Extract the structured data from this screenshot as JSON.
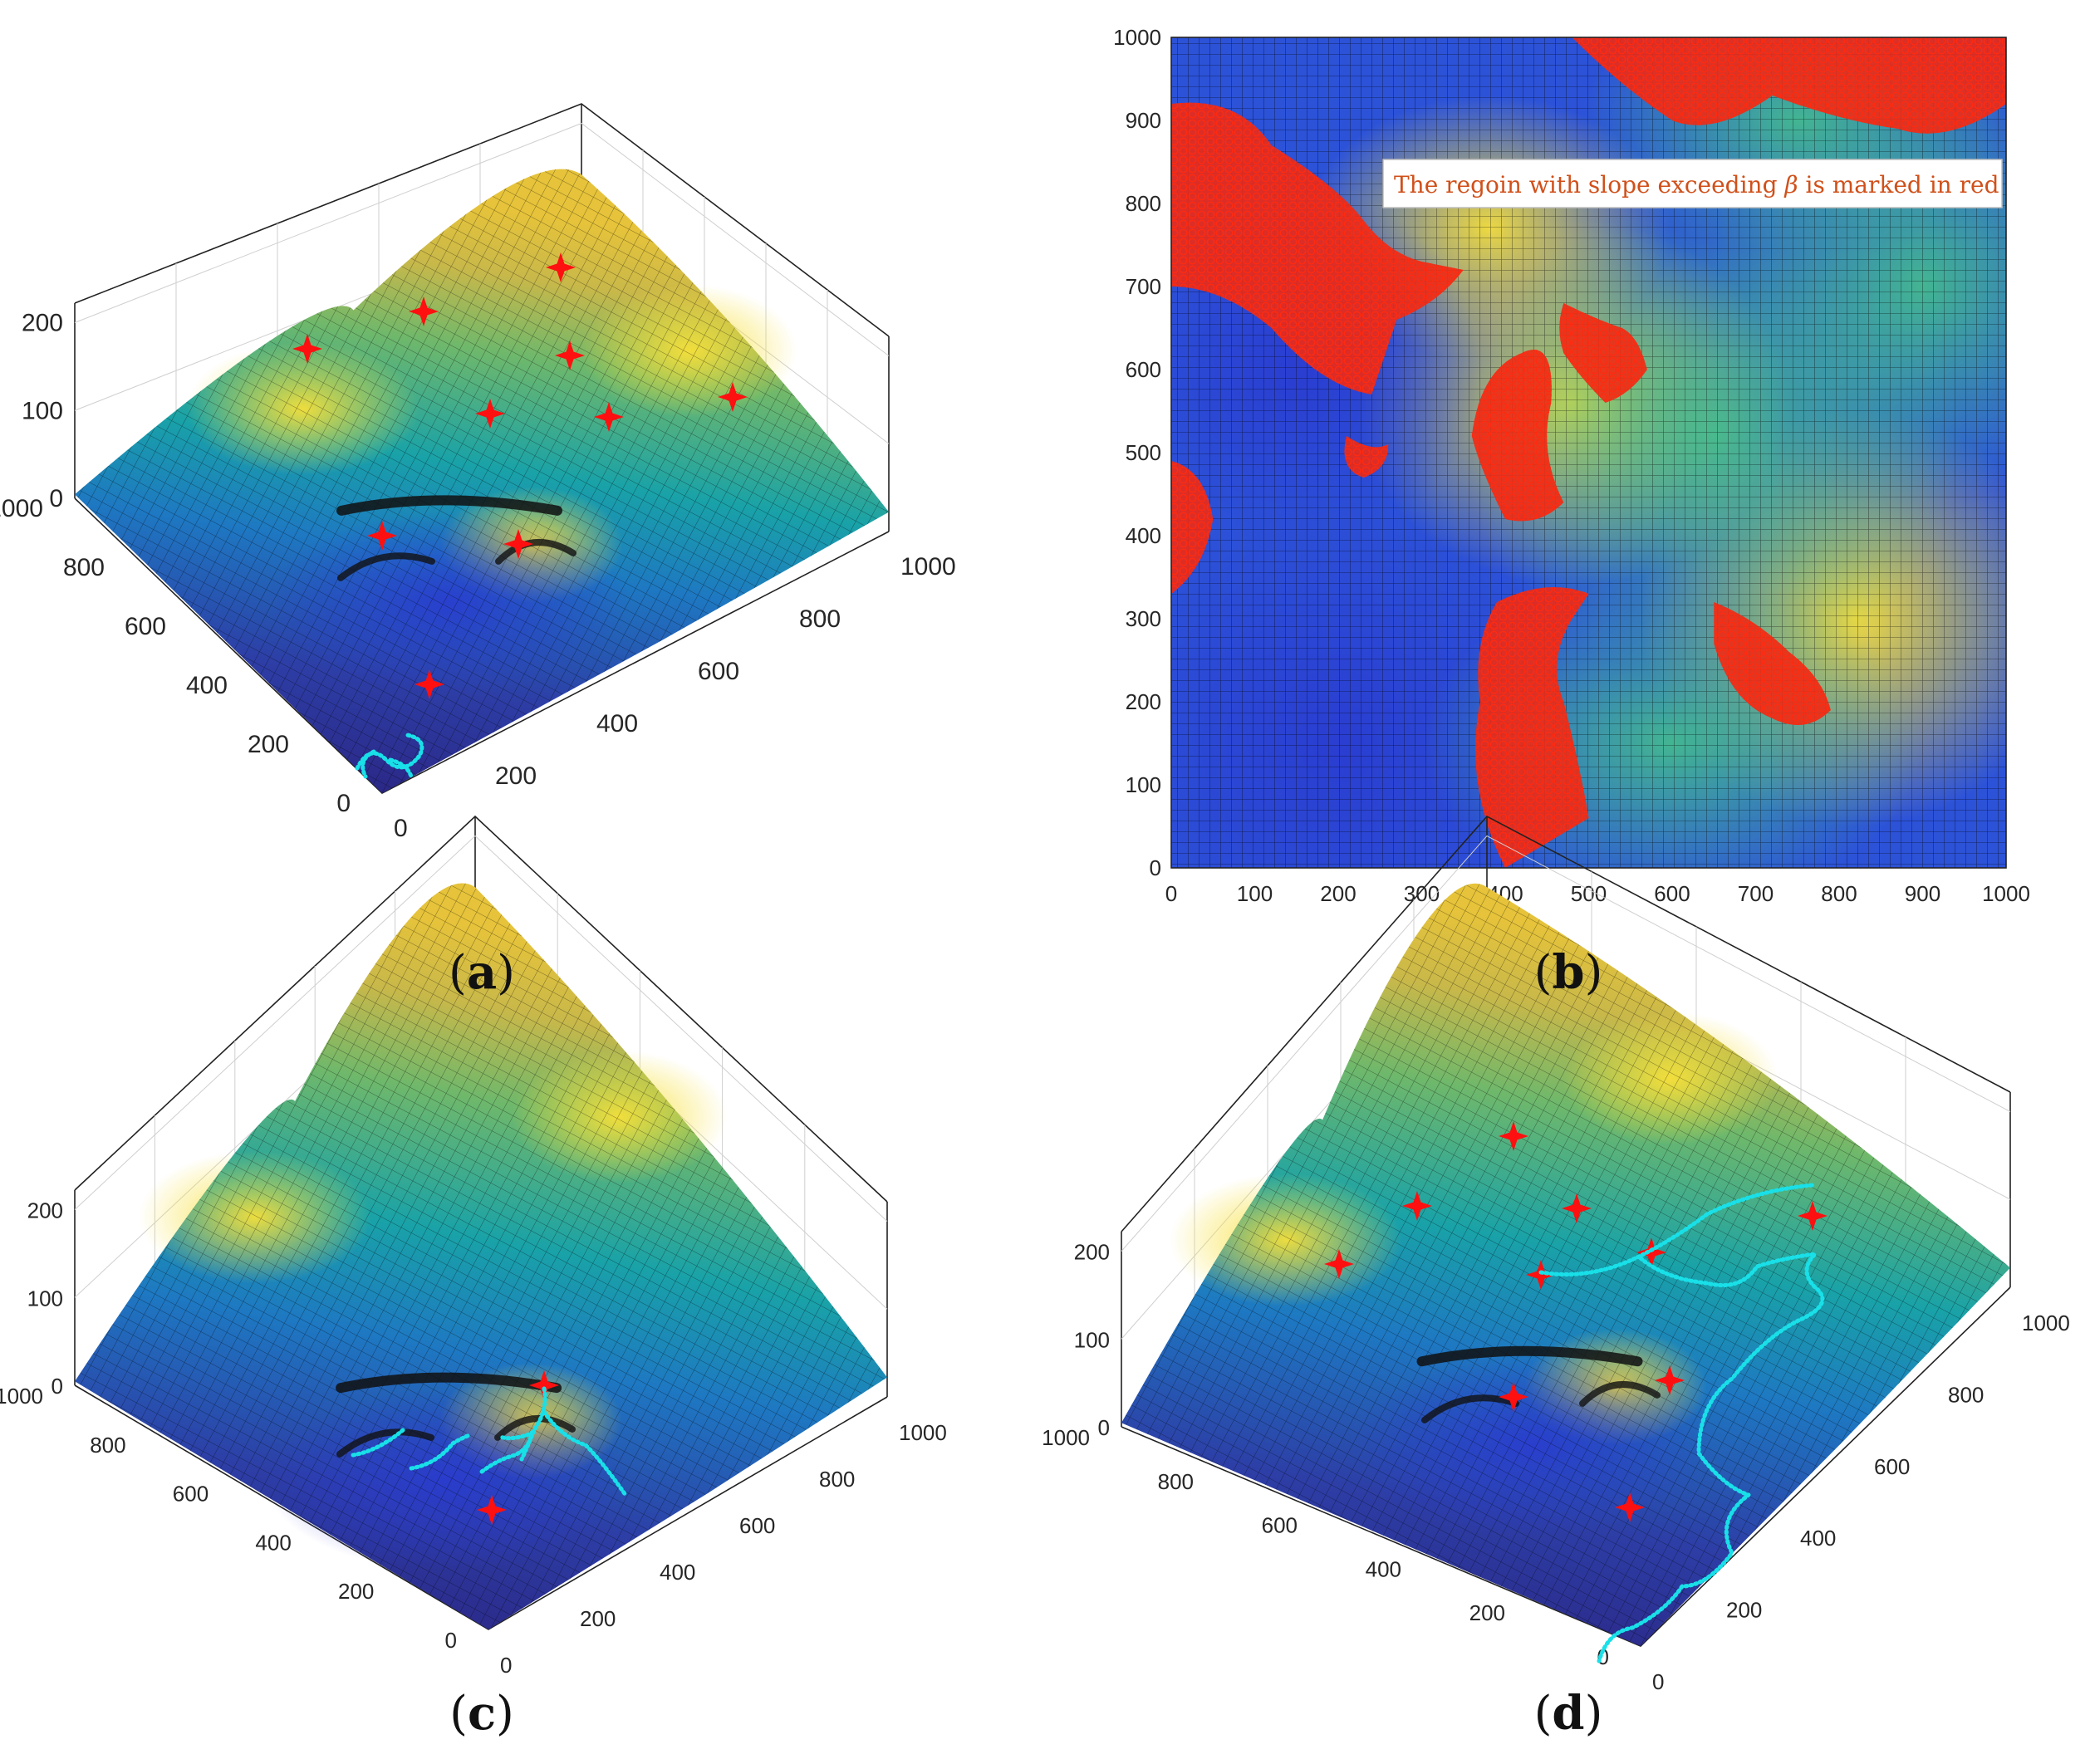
{
  "chart_data": [
    {
      "panel": "a",
      "type": "surface",
      "x_ticks": [
        "0",
        "200",
        "400",
        "600",
        "800",
        "1000"
      ],
      "y_ticks": [
        "0",
        "200",
        "400",
        "600",
        "800",
        "1000"
      ],
      "z_ticks": [
        "0",
        "100",
        "200"
      ],
      "xlim": [
        0,
        1000
      ],
      "ylim": [
        0,
        1000
      ],
      "zlim": [
        0,
        220
      ],
      "view": "3d",
      "grid": true,
      "colormap": "parula",
      "marker_color": "#ff1010",
      "marker_count": 11,
      "path_color": "#19e0e8",
      "path_description_points": [
        [
          40,
          30
        ],
        [
          60,
          80
        ],
        [
          100,
          60
        ],
        [
          130,
          110
        ],
        [
          90,
          140
        ]
      ]
    },
    {
      "panel": "b",
      "type": "heatmap",
      "x_ticks": [
        "0",
        "100",
        "200",
        "300",
        "400",
        "500",
        "600",
        "700",
        "800",
        "900",
        "1000"
      ],
      "y_ticks": [
        "0",
        "100",
        "200",
        "300",
        "400",
        "500",
        "600",
        "700",
        "800",
        "900",
        "1000"
      ],
      "xlim": [
        0,
        1000
      ],
      "ylim": [
        0,
        1000
      ],
      "grid": true,
      "colormap": "parula",
      "highlight_color": "#f02a14",
      "annotation_pre": "The regoin with slope exceeding ",
      "annotation_symbol": "β",
      "annotation_post": " is marked in red",
      "annotation_placement": "top-right"
    },
    {
      "panel": "c",
      "type": "surface",
      "x_ticks": [
        "0",
        "200",
        "400",
        "600",
        "800",
        "1000"
      ],
      "y_ticks": [
        "0",
        "200",
        "400",
        "600",
        "800",
        "1000"
      ],
      "z_ticks": [
        "0",
        "100",
        "200"
      ],
      "xlim": [
        0,
        1000
      ],
      "ylim": [
        0,
        1000
      ],
      "zlim": [
        0,
        220
      ],
      "view": "3d",
      "grid": true,
      "colormap": "parula",
      "marker_color": "#ff1010",
      "marker_count": 2,
      "path_color": "#19e0e8"
    },
    {
      "panel": "d",
      "type": "surface",
      "x_ticks": [
        "0",
        "200",
        "400",
        "600",
        "800",
        "1000"
      ],
      "y_ticks": [
        "0",
        "200",
        "400",
        "600",
        "800",
        "1000"
      ],
      "z_ticks": [
        "0",
        "100",
        "200"
      ],
      "xlim": [
        0,
        1000
      ],
      "ylim": [
        0,
        1000
      ],
      "zlim": [
        0,
        220
      ],
      "view": "3d",
      "grid": true,
      "colormap": "parula",
      "marker_color": "#ff1010",
      "marker_count": 11,
      "path_color": "#19e0e8"
    }
  ],
  "labels": {
    "a": {
      "open": "(",
      "letter": "a",
      "close": ")"
    },
    "b": {
      "open": "(",
      "letter": "b",
      "close": ")"
    },
    "c": {
      "open": "(",
      "letter": "c",
      "close": ")"
    },
    "d": {
      "open": "(",
      "letter": "d",
      "close": ")"
    }
  }
}
